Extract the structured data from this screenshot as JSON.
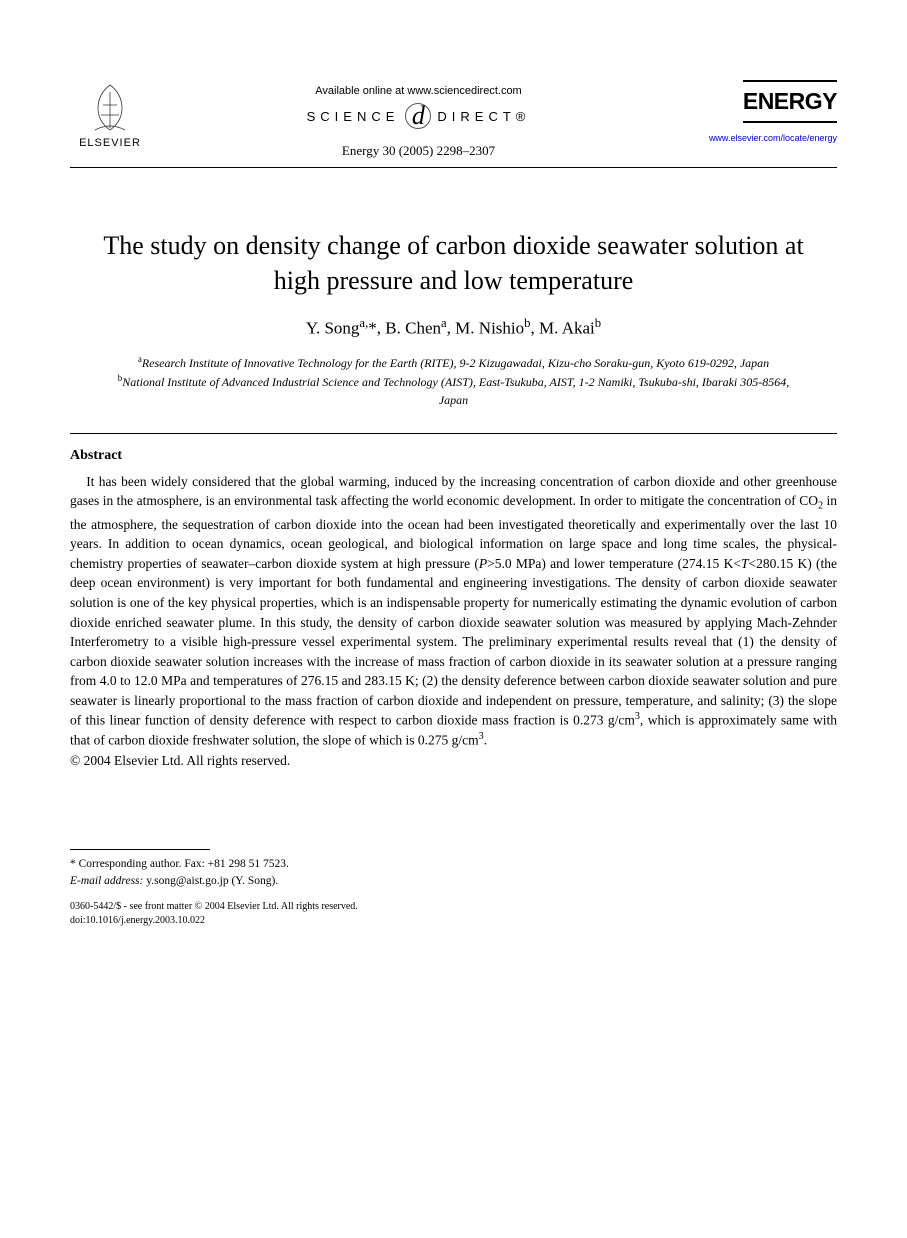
{
  "header": {
    "publisher": "ELSEVIER",
    "available_text": "Available online at www.sciencedirect.com",
    "sciencedirect_left": "SCIENCE",
    "sciencedirect_d": "d",
    "sciencedirect_right": "DIRECT®",
    "citation": "Energy 30 (2005) 2298–2307",
    "journal_name": "ENERGY",
    "journal_url": "www.elsevier.com/locate/energy"
  },
  "title": "The study on density change of carbon dioxide seawater solution at high pressure and low temperature",
  "authors_html": "Y. Song<sup>a,</sup>*, B. Chen<sup>a</sup>, M. Nishio<sup>b</sup>, M. Akai<sup>b</sup>",
  "affiliations": {
    "a": "Research Institute of Innovative Technology for the Earth (RITE), 9-2 Kizugawadai, Kizu-cho Soraku-gun, Kyoto 619-0292, Japan",
    "b": "National Institute of Advanced Industrial Science and Technology (AIST), East-Tsukuba, AIST, 1-2 Namiki, Tsukuba-shi, Ibaraki 305-8564, Japan"
  },
  "abstract": {
    "heading": "Abstract",
    "body_html": "It has been widely considered that the global warming, induced by the increasing concentration of carbon dioxide and other greenhouse gases in the atmosphere, is an environmental task affecting the world economic development. In order to mitigate the concentration of CO<sub>2</sub> in the atmosphere, the sequestration of carbon dioxide into the ocean had been investigated theoretically and experimentally over the last 10 years. In addition to ocean dynamics, ocean geological, and biological information on large space and long time scales, the physical-chemistry properties of seawater–carbon dioxide system at high pressure (<i>P</i>>5.0 MPa) and lower temperature (274.15 K<<i>T</i><280.15 K) (the deep ocean environment) is very important for both fundamental and engineering investigations. The density of carbon dioxide seawater solution is one of the key physical properties, which is an indispensable property for numerically estimating the dynamic evolution of carbon dioxide enriched seawater plume. In this study, the density of carbon dioxide seawater solution was measured by applying Mach-Zehnder Interferometry to a visible high-pressure vessel experimental system. The preliminary experimental results reveal that (1) the density of carbon dioxide seawater solution increases with the increase of mass fraction of carbon dioxide in its seawater solution at a pressure ranging from 4.0 to 12.0 MPa and temperatures of 276.15 and 283.15 K; (2) the density deference between carbon dioxide seawater solution and pure seawater is linearly proportional to the mass fraction of carbon dioxide and independent on pressure, temperature, and salinity; (3) the slope of this linear function of density deference with respect to carbon dioxide mass fraction is 0.273 g/cm<sup>3</sup>, which is approximately same with that of carbon dioxide freshwater solution, the slope of which is 0.275 g/cm<sup>3</sup>.",
    "copyright": "© 2004 Elsevier Ltd. All rights reserved."
  },
  "footnote": {
    "corresponding": "* Corresponding author. Fax: +81 298 51 7523.",
    "email_label": "E-mail address:",
    "email": "y.song@aist.go.jp (Y. Song)."
  },
  "footer": {
    "line1": "0360-5442/$ - see front matter © 2004 Elsevier Ltd. All rights reserved.",
    "line2": "doi:10.1016/j.energy.2003.10.022"
  },
  "colors": {
    "text": "#000000",
    "background": "#ffffff",
    "link": "#0000cc"
  },
  "typography": {
    "title_fontsize": 26,
    "body_fontsize": 13.5,
    "author_fontsize": 17,
    "affiliation_fontsize": 12,
    "footnote_fontsize": 11.5,
    "footer_fontsize": 10
  }
}
